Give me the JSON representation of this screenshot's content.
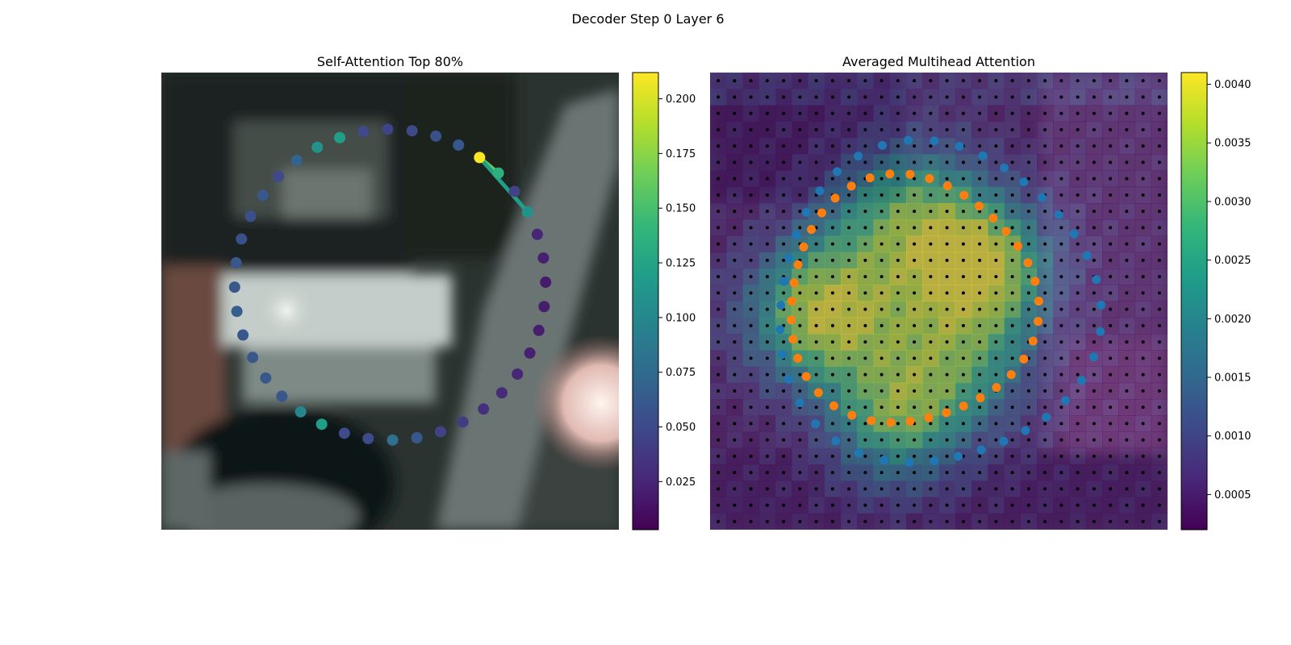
{
  "figure": {
    "suptitle": "Decoder Step 0 Layer 6"
  },
  "colors": {
    "background": "#ffffff",
    "blue_points": "#1f77b4",
    "orange_points": "#ff7f0e",
    "grid_dots": "#000000",
    "viridis": [
      "#440154",
      "#482878",
      "#3e4989",
      "#31688e",
      "#26828e",
      "#1f9e89",
      "#35b779",
      "#6ece58",
      "#b5de2b",
      "#fde725"
    ]
  },
  "chart_data": [
    {
      "type": "scatter",
      "title": "Self-Attention Top 80%",
      "xlim": [
        0,
        1
      ],
      "ylim": [
        0,
        1
      ],
      "colorbar": {
        "range": [
          0.003,
          0.212
        ],
        "ticks": [
          0.025,
          0.05,
          0.075,
          0.1,
          0.125,
          0.15,
          0.175,
          0.2
        ],
        "tick_labels": [
          "0.025",
          "0.050",
          "0.075",
          "0.100",
          "0.125",
          "0.150",
          "0.175",
          "0.200"
        ]
      },
      "ring_points": {
        "count": 40,
        "attention": [
          0.212,
          0.135,
          0.045,
          0.11,
          0.025,
          0.022,
          0.018,
          0.02,
          0.02,
          0.022,
          0.025,
          0.028,
          0.032,
          0.04,
          0.045,
          0.06,
          0.08,
          0.05,
          0.05,
          0.12,
          0.1,
          0.06,
          0.06,
          0.06,
          0.06,
          0.065,
          0.06,
          0.06,
          0.055,
          0.055,
          0.06,
          0.05,
          0.07,
          0.11,
          0.12,
          0.05,
          0.045,
          0.05,
          0.055,
          0.06
        ]
      },
      "attention_links": [
        {
          "from": 0,
          "to": 1,
          "weight": 0.16
        },
        {
          "from": 0,
          "to": 3,
          "weight": 0.12
        }
      ],
      "grid": false
    },
    {
      "type": "heatmap",
      "title": "Averaged Multihead Attention",
      "grid_size": [
        28,
        28
      ],
      "colorbar": {
        "range": [
          0.0002,
          0.0041
        ],
        "ticks": [
          0.0005,
          0.001,
          0.0015,
          0.002,
          0.0025,
          0.003,
          0.0035,
          0.004
        ],
        "tick_labels": [
          "0.0005",
          "0.0010",
          "0.0015",
          "0.0020",
          "0.0025",
          "0.0030",
          "0.0035",
          "0.0040"
        ]
      },
      "series": [
        {
          "color": "#1f77b4",
          "count": 40,
          "ring_radius": 0.35
        },
        {
          "color": "#ff7f0e",
          "count": 40,
          "ring_radius": 0.27
        }
      ],
      "grid": false
    }
  ]
}
